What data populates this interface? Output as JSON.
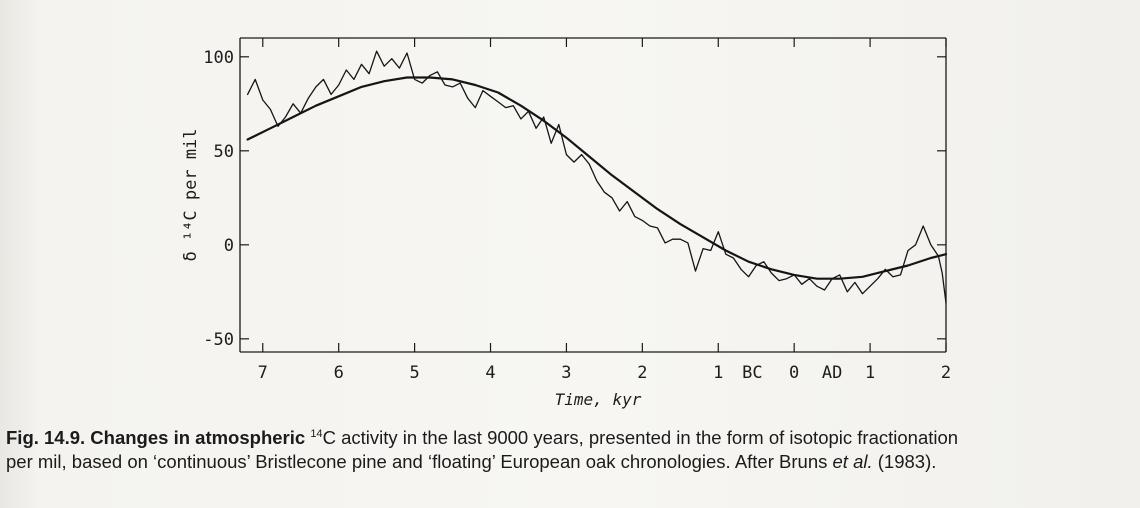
{
  "chart_data": {
    "type": "line",
    "xlabel": "Time, kyr",
    "ylabel": "δ ¹⁴C per mil",
    "xlim": [
      7.3,
      -2
    ],
    "ylim": [
      -57,
      110
    ],
    "x_unit_note": "values > 0 are BC, values < 0 are AD",
    "x_ticks": [
      {
        "value": 7,
        "label": "7"
      },
      {
        "value": 6,
        "label": "6"
      },
      {
        "value": 5,
        "label": "5"
      },
      {
        "value": 4,
        "label": "4"
      },
      {
        "value": 3,
        "label": "3"
      },
      {
        "value": 2,
        "label": "2"
      },
      {
        "value": 1,
        "label": "1"
      },
      {
        "value": 0,
        "label": "0"
      },
      {
        "value": -1,
        "label": "1"
      },
      {
        "value": -2,
        "label": "2"
      }
    ],
    "x_era_labels": [
      {
        "value": 0.55,
        "label": "BC"
      },
      {
        "value": -0.5,
        "label": "AD"
      }
    ],
    "y_ticks": [
      {
        "value": 100,
        "label": "100"
      },
      {
        "value": 50,
        "label": "50"
      },
      {
        "value": 0,
        "label": "0"
      },
      {
        "value": -50,
        "label": "-50"
      }
    ],
    "grid": false,
    "series": [
      {
        "kind": "trend",
        "x": [
          7.2,
          6.9,
          6.6,
          6.3,
          6.0,
          5.7,
          5.4,
          5.1,
          4.8,
          4.5,
          4.2,
          3.9,
          3.6,
          3.3,
          3.0,
          2.7,
          2.4,
          2.1,
          1.8,
          1.5,
          1.2,
          0.9,
          0.6,
          0.3,
          0.0,
          -0.3,
          -0.6,
          -0.9,
          -1.2,
          -1.5,
          -1.8,
          -2.0
        ],
        "values": [
          56,
          62,
          68,
          74,
          79,
          84,
          87,
          89,
          89,
          88,
          85,
          81,
          74,
          66,
          57,
          47,
          37,
          28,
          19,
          11,
          4,
          -3,
          -9,
          -13,
          -16,
          -18,
          -18,
          -17,
          -14,
          -11,
          -7,
          -5
        ]
      },
      {
        "kind": "measured",
        "x": [
          7.2,
          7.1,
          7.0,
          6.9,
          6.8,
          6.7,
          6.6,
          6.5,
          6.4,
          6.3,
          6.2,
          6.1,
          6.0,
          5.9,
          5.8,
          5.7,
          5.6,
          5.5,
          5.4,
          5.3,
          5.2,
          5.1,
          5.0,
          4.9,
          4.8,
          4.7,
          4.6,
          4.5,
          4.4,
          4.3,
          4.2,
          4.1,
          4.0,
          3.9,
          3.8,
          3.7,
          3.6,
          3.5,
          3.4,
          3.3,
          3.2,
          3.1,
          3.0,
          2.9,
          2.8,
          2.7,
          2.6,
          2.5,
          2.4,
          2.3,
          2.2,
          2.1,
          2.0,
          1.9,
          1.8,
          1.7,
          1.6,
          1.5,
          1.4,
          1.3,
          1.2,
          1.1,
          1.0,
          0.9,
          0.8,
          0.7,
          0.6,
          0.5,
          0.4,
          0.3,
          0.2,
          0.1,
          0.0,
          -0.1,
          -0.2,
          -0.3,
          -0.4,
          -0.5,
          -0.6,
          -0.7,
          -0.8,
          -0.9,
          -1.0,
          -1.1,
          -1.2,
          -1.3,
          -1.4,
          -1.5,
          -1.6,
          -1.7,
          -1.8,
          -1.9,
          -1.95,
          -2.0
        ],
        "values": [
          80,
          88,
          77,
          72,
          63,
          68,
          75,
          70,
          78,
          84,
          88,
          80,
          85,
          93,
          88,
          96,
          91,
          103,
          95,
          99,
          94,
          102,
          88,
          86,
          90,
          92,
          85,
          84,
          86,
          78,
          73,
          82,
          79,
          76,
          73,
          74,
          67,
          71,
          62,
          68,
          54,
          64,
          48,
          44,
          48,
          43,
          34,
          28,
          25,
          18,
          23,
          15,
          13,
          10,
          9,
          1,
          3,
          3,
          1,
          -14,
          -2,
          -3,
          7,
          -5,
          -7,
          -13,
          -17,
          -11,
          -9,
          -15,
          -19,
          -18,
          -16,
          -21,
          -18,
          -22,
          -24,
          -18,
          -16,
          -25,
          -20,
          -26,
          -22,
          -18,
          -13,
          -17,
          -16,
          -3,
          0,
          10,
          0,
          -6,
          -15,
          -31
        ]
      }
    ]
  },
  "caption": {
    "prefix": "Fig. 14.9. Changes in atmospheric ",
    "sup": "14",
    "line1_rest": "C activity in the last 9000 years, presented in the form of isotopic fractionation",
    "line2_start": "per mil, based on ‘continuous’ Bristlecone pine and ‘floating’ European oak chronologies. After Bruns ",
    "etal": "et al.",
    "line2_end": " (1983)."
  }
}
